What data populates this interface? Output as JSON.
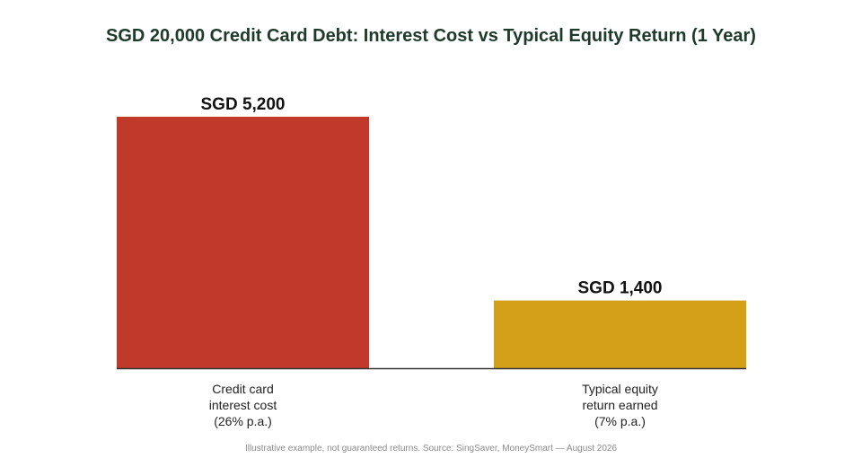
{
  "chart_data": {
    "type": "bar",
    "title": "SGD 20,000 Credit Card Debt: Interest Cost vs Typical Equity Return (1 Year)",
    "categories": [
      [
        "Credit card",
        "interest cost",
        "(26% p.a.)"
      ],
      [
        "Typical equity",
        "return earned",
        "(7% p.a.)"
      ]
    ],
    "values": [
      5200,
      1400
    ],
    "value_labels": [
      "SGD 5,200",
      "SGD 1,400"
    ],
    "colors": [
      "#c0392b",
      "#d4a017"
    ],
    "ylim": [
      0,
      5200
    ],
    "grid": false,
    "xlabel": "",
    "ylabel": ""
  },
  "footnote": "Illustrative example, not guaranteed returns. Source: SingSaver, MoneySmart — August 2026"
}
